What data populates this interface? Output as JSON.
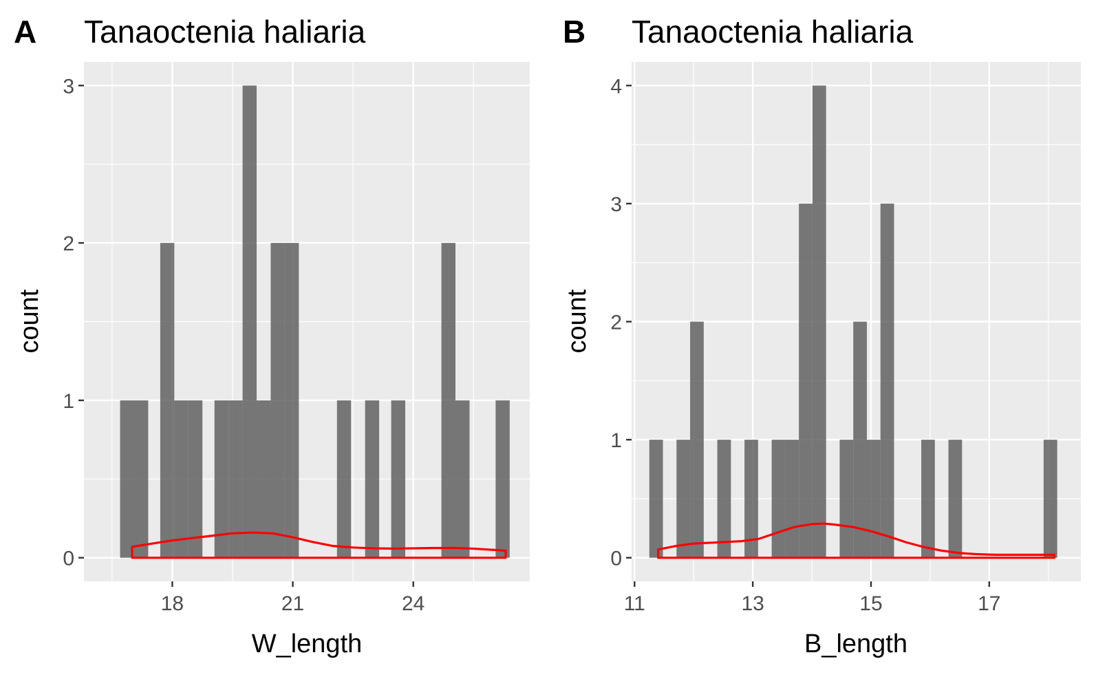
{
  "figure": {
    "panels": [
      {
        "letter": "A",
        "title": "Tanaoctenia haliaria"
      },
      {
        "letter": "B",
        "title": "Tanaoctenia haliaria"
      }
    ]
  },
  "chart_data": [
    {
      "type": "bar",
      "subtype": "histogram with density overlay",
      "panel": "A",
      "title": "Tanaoctenia haliaria",
      "xlabel": "W_length",
      "ylabel": "count",
      "xlim": [
        15.8,
        26.9
      ],
      "ylim": [
        -0.15,
        3.15
      ],
      "xticks": [
        18,
        21,
        24
      ],
      "xtick_labels": [
        "18",
        "21",
        "24"
      ],
      "yticks": [
        0,
        1,
        2,
        3
      ],
      "ytick_labels": [
        "0",
        "1",
        "2",
        "3"
      ],
      "grid": true,
      "background": "#ebebeb",
      "bar_color": "#595959",
      "bar_opacity": 0.8,
      "bins": [
        {
          "x0": 16.7,
          "x1": 17.05,
          "count": 1
        },
        {
          "x0": 17.05,
          "x1": 17.4,
          "count": 1
        },
        {
          "x0": 17.7,
          "x1": 18.05,
          "count": 2
        },
        {
          "x0": 18.05,
          "x1": 18.4,
          "count": 1
        },
        {
          "x0": 18.4,
          "x1": 18.75,
          "count": 1
        },
        {
          "x0": 19.05,
          "x1": 19.4,
          "count": 1
        },
        {
          "x0": 19.4,
          "x1": 19.75,
          "count": 1
        },
        {
          "x0": 19.75,
          "x1": 20.1,
          "count": 3
        },
        {
          "x0": 20.1,
          "x1": 20.45,
          "count": 1
        },
        {
          "x0": 20.45,
          "x1": 20.8,
          "count": 2
        },
        {
          "x0": 20.8,
          "x1": 21.15,
          "count": 2
        },
        {
          "x0": 22.1,
          "x1": 22.45,
          "count": 1
        },
        {
          "x0": 22.8,
          "x1": 23.15,
          "count": 1
        },
        {
          "x0": 23.45,
          "x1": 23.8,
          "count": 1
        },
        {
          "x0": 24.7,
          "x1": 25.05,
          "count": 2
        },
        {
          "x0": 25.05,
          "x1": 25.4,
          "count": 1
        },
        {
          "x0": 26.05,
          "x1": 26.4,
          "count": 1
        }
      ],
      "density": {
        "color": "#ff0000",
        "x": [
          17.0,
          17.5,
          18.0,
          18.5,
          19.0,
          19.5,
          20.0,
          20.5,
          21.0,
          21.5,
          22.0,
          22.5,
          23.0,
          23.5,
          24.0,
          24.5,
          25.0,
          25.5,
          26.0,
          26.3
        ],
        "y": [
          0.07,
          0.09,
          0.11,
          0.125,
          0.14,
          0.155,
          0.16,
          0.155,
          0.13,
          0.1,
          0.075,
          0.065,
          0.06,
          0.058,
          0.06,
          0.062,
          0.062,
          0.058,
          0.05,
          0.045
        ]
      }
    },
    {
      "type": "bar",
      "subtype": "histogram with density overlay",
      "panel": "B",
      "title": "Tanaoctenia haliaria",
      "xlabel": "B_length",
      "ylabel": "count",
      "xlim": [
        10.95,
        18.55
      ],
      "ylim": [
        -0.2,
        4.2
      ],
      "xticks": [
        11,
        13,
        15,
        17
      ],
      "xtick_labels": [
        "11",
        "13",
        "15",
        "17"
      ],
      "yticks": [
        0,
        1,
        2,
        3,
        4
      ],
      "ytick_labels": [
        "0",
        "1",
        "2",
        "3",
        "4"
      ],
      "grid": true,
      "background": "#ebebeb",
      "bar_color": "#595959",
      "bar_opacity": 0.8,
      "bins": [
        {
          "x0": 11.25,
          "x1": 11.48,
          "count": 1
        },
        {
          "x0": 11.71,
          "x1": 11.94,
          "count": 1
        },
        {
          "x0": 11.94,
          "x1": 12.17,
          "count": 2
        },
        {
          "x0": 12.4,
          "x1": 12.63,
          "count": 1
        },
        {
          "x0": 12.86,
          "x1": 13.09,
          "count": 1
        },
        {
          "x0": 13.32,
          "x1": 13.55,
          "count": 1
        },
        {
          "x0": 13.55,
          "x1": 13.78,
          "count": 1
        },
        {
          "x0": 13.78,
          "x1": 14.01,
          "count": 3
        },
        {
          "x0": 14.01,
          "x1": 14.24,
          "count": 4
        },
        {
          "x0": 14.47,
          "x1": 14.7,
          "count": 1
        },
        {
          "x0": 14.7,
          "x1": 14.93,
          "count": 2
        },
        {
          "x0": 14.93,
          "x1": 15.16,
          "count": 1
        },
        {
          "x0": 15.16,
          "x1": 15.39,
          "count": 3
        },
        {
          "x0": 15.85,
          "x1": 16.08,
          "count": 1
        },
        {
          "x0": 16.31,
          "x1": 16.54,
          "count": 1
        },
        {
          "x0": 17.92,
          "x1": 18.15,
          "count": 1
        }
      ],
      "density": {
        "color": "#ff0000",
        "x": [
          11.4,
          11.7,
          12.0,
          12.4,
          12.8,
          13.1,
          13.4,
          13.7,
          14.0,
          14.2,
          14.4,
          14.7,
          15.0,
          15.3,
          15.6,
          15.9,
          16.2,
          16.5,
          16.8,
          17.1,
          17.5,
          18.1
        ],
        "y": [
          0.07,
          0.1,
          0.12,
          0.13,
          0.14,
          0.16,
          0.21,
          0.26,
          0.285,
          0.29,
          0.28,
          0.26,
          0.225,
          0.18,
          0.13,
          0.09,
          0.06,
          0.04,
          0.03,
          0.025,
          0.025,
          0.025
        ]
      }
    }
  ]
}
